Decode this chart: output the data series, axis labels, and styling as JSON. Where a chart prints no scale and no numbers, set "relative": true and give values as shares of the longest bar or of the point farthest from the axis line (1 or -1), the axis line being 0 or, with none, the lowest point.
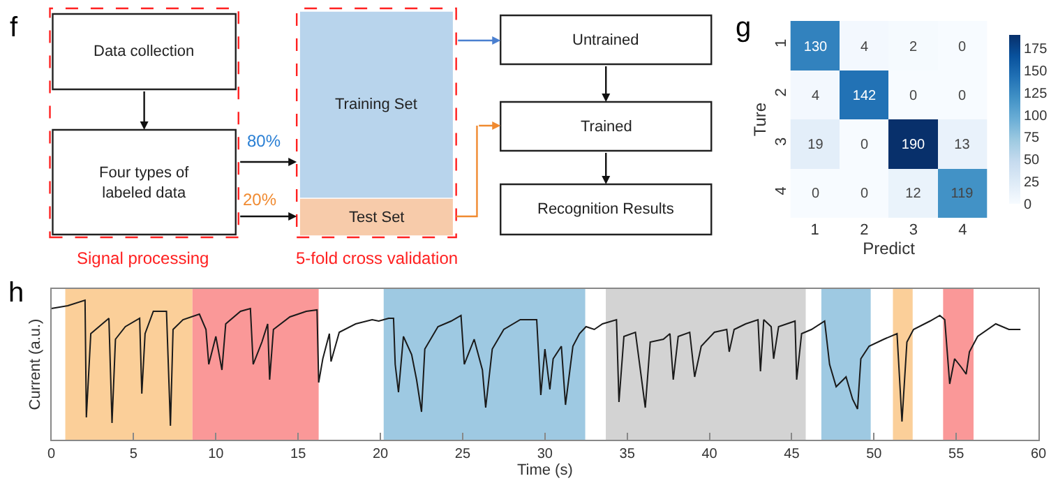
{
  "chart_data": [
    {
      "type": "other",
      "title": "f",
      "annotations": [
        "Data collection",
        "Four types of labeled data",
        "Training Set",
        "Test Set",
        "Untrained",
        "Trained",
        "Recognition Results",
        "80%",
        "20%",
        "Signal processing",
        "5-fold cross validation"
      ]
    },
    {
      "type": "heatmap",
      "title": "g",
      "xlabel": "Predict",
      "ylabel": "Ture",
      "categories": [
        "1",
        "2",
        "3",
        "4"
      ],
      "y_categories": [
        "1",
        "2",
        "3",
        "4"
      ],
      "cells": [
        [
          130,
          4,
          2,
          0
        ],
        [
          4,
          142,
          0,
          0
        ],
        [
          19,
          0,
          190,
          13
        ],
        [
          0,
          0,
          12,
          119
        ]
      ],
      "data_labels": true,
      "clim": [
        0,
        190
      ],
      "cticks": [
        0,
        25,
        50,
        75,
        100,
        125,
        150,
        175
      ]
    },
    {
      "type": "line",
      "title": "h",
      "xlabel": "Time (s)",
      "ylabel": "Current (a.u.)",
      "relative": true,
      "xlim": [
        0,
        60
      ],
      "xticks": [
        0,
        5,
        10,
        15,
        20,
        25,
        30,
        35,
        40,
        45,
        50,
        55,
        60
      ],
      "x": [
        0,
        0.5,
        1,
        2.05,
        2.13,
        2.4,
        3.5,
        3.69,
        3.9,
        4.5,
        5.37,
        5.5,
        5.7,
        6.2,
        7.0,
        7.24,
        7.4,
        8.0,
        9.0,
        9.4,
        9.57,
        10.0,
        10.37,
        10.6,
        11.5,
        12.1,
        12.27,
        12.8,
        13.15,
        13.27,
        13.5,
        14.5,
        15.5,
        16.15,
        16.25,
        16.5,
        16.9,
        17.0,
        17.5,
        18.5,
        19.5,
        19.9,
        20.5,
        20.8,
        20.9,
        21.1,
        21.4,
        21.9,
        22.2,
        22.5,
        22.7,
        23.5,
        24.3,
        24.9,
        25.1,
        25.7,
        26.2,
        26.4,
        26.8,
        27.5,
        28.5,
        29.5,
        29.75,
        30.0,
        30.3,
        30.5,
        31.0,
        31.25,
        31.7,
        32.1,
        32.5,
        33.0,
        33.5,
        34.35,
        34.5,
        34.8,
        35.5,
        36.1,
        36.4,
        37.2,
        37.6,
        37.8,
        38.1,
        38.8,
        39.1,
        39.5,
        40.3,
        41.05,
        41.2,
        41.5,
        42.2,
        42.95,
        43.1,
        43.3,
        43.75,
        43.9,
        44.2,
        45.2,
        45.3,
        45.6,
        46.2,
        47.0,
        47.3,
        47.7,
        48.3,
        48.7,
        49.0,
        49.2,
        49.7,
        50.6,
        51.4,
        51.7,
        52.0,
        52.4,
        53.4,
        54.0,
        54.3,
        54.6,
        54.9,
        55.3,
        55.6,
        55.8,
        56.3,
        57.4,
        58.2,
        58.9
      ],
      "series": [
        {
          "color": "#1a1a1a",
          "values": [
            0.94,
            0.95,
            0.96,
            1.0,
            0.16,
            0.76,
            0.87,
            0.12,
            0.72,
            0.81,
            0.87,
            0.33,
            0.76,
            0.92,
            0.92,
            0.1,
            0.79,
            0.86,
            0.9,
            0.79,
            0.54,
            0.74,
            0.5,
            0.83,
            0.92,
            0.94,
            0.54,
            0.7,
            0.83,
            0.43,
            0.79,
            0.88,
            0.92,
            0.93,
            0.41,
            0.58,
            0.76,
            0.56,
            0.77,
            0.83,
            0.86,
            0.85,
            0.87,
            0.87,
            0.54,
            0.34,
            0.74,
            0.61,
            0.43,
            0.2,
            0.65,
            0.81,
            0.85,
            0.89,
            0.54,
            0.72,
            0.5,
            0.23,
            0.65,
            0.79,
            0.86,
            0.86,
            0.32,
            0.65,
            0.36,
            0.58,
            0.67,
            0.25,
            0.67,
            0.76,
            0.81,
            0.79,
            0.83,
            0.86,
            0.27,
            0.74,
            0.77,
            0.23,
            0.7,
            0.72,
            0.76,
            0.43,
            0.74,
            0.77,
            0.45,
            0.67,
            0.77,
            0.79,
            0.63,
            0.79,
            0.83,
            0.86,
            0.49,
            0.86,
            0.81,
            0.58,
            0.81,
            0.85,
            0.43,
            0.76,
            0.79,
            0.85,
            0.54,
            0.38,
            0.45,
            0.29,
            0.22,
            0.58,
            0.67,
            0.72,
            0.76,
            0.13,
            0.7,
            0.79,
            0.85,
            0.89,
            0.86,
            0.4,
            0.58,
            0.52,
            0.47,
            0.63,
            0.74,
            0.83,
            0.79,
            0.79
          ]
        }
      ],
      "bands": [
        {
          "axis": "x",
          "from": 0.85,
          "to": 8.58,
          "color": "#fbcf99"
        },
        {
          "axis": "x",
          "from": 8.58,
          "to": 16.25,
          "color": "#fa9898"
        },
        {
          "axis": "x",
          "from": 20.2,
          "to": 32.45,
          "color": "#9ec9e2"
        },
        {
          "axis": "x",
          "from": 33.7,
          "to": 45.85,
          "color": "#d3d3d3"
        },
        {
          "axis": "x",
          "from": 46.8,
          "to": 49.8,
          "color": "#9ec9e2"
        },
        {
          "axis": "x",
          "from": 51.15,
          "to": 52.35,
          "color": "#fbcf99"
        },
        {
          "axis": "x",
          "from": 54.2,
          "to": 56.05,
          "color": "#fa9898"
        }
      ]
    }
  ]
}
